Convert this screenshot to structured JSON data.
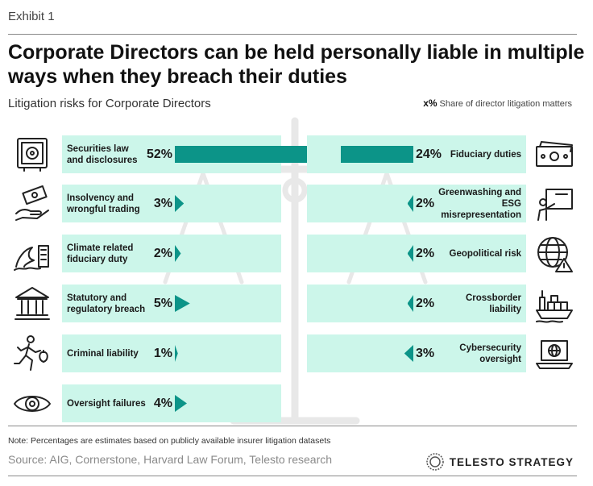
{
  "header": {
    "exhibit": "Exhibit 1",
    "title": "Corporate Directors can be held personally liable in multiple ways when they breach their duties",
    "subtitle": "Litigation risks for Corporate Directors",
    "legend_marker": "x%",
    "legend_text": "Share of director litigation matters"
  },
  "colors": {
    "bar": "#0c9488",
    "row_bg": "#ccf6ea",
    "scale": "#e8e8e8"
  },
  "chart_data": {
    "type": "bar",
    "title": "Corporate Directors can be held personally liable in multiple ways when they breach their duties",
    "subtitle": "Litigation risks for Corporate Directors",
    "value_unit": "%",
    "left": [
      {
        "label": "Securities law and disclosures",
        "value": 52,
        "value_label": "52%",
        "icon": "safe-icon"
      },
      {
        "label": "Insolvency and wrongful trading",
        "value": 3,
        "value_label": "3%",
        "icon": "money-hand-icon"
      },
      {
        "label": "Climate related fiduciary duty",
        "value": 2,
        "value_label": "2%",
        "icon": "wave-building-icon"
      },
      {
        "label": "Statutory and regulatory breach",
        "value": 5,
        "value_label": "5%",
        "icon": "courthouse-icon"
      },
      {
        "label": "Criminal liability",
        "value": 1,
        "value_label": "1%",
        "icon": "running-thief-icon"
      },
      {
        "label": "Oversight failures",
        "value": 4,
        "value_label": "4%",
        "icon": "eye-icon"
      }
    ],
    "right": [
      {
        "label": "Fiduciary duties",
        "value": 24,
        "value_label": "24%",
        "icon": "banknotes-icon"
      },
      {
        "label": "Greenwashing and ESG misrepresentation",
        "value": 2,
        "value_label": "2%",
        "icon": "presentation-icon"
      },
      {
        "label": "Geopolitical risk",
        "value": 2,
        "value_label": "2%",
        "icon": "globe-warning-icon"
      },
      {
        "label": "Crossborder liability",
        "value": 2,
        "value_label": "2%",
        "icon": "cargo-ship-icon"
      },
      {
        "label": "Cybersecurity oversight",
        "value": 3,
        "value_label": "3%",
        "icon": "laptop-globe-icon"
      }
    ]
  },
  "footer": {
    "note": "Note: Percentages are estimates based on publicly available insurer litigation datasets",
    "source": "Source: AIG, Cornerstone, Harvard Law Forum, Telesto research",
    "brand": "TELESTO STRATEGY"
  }
}
